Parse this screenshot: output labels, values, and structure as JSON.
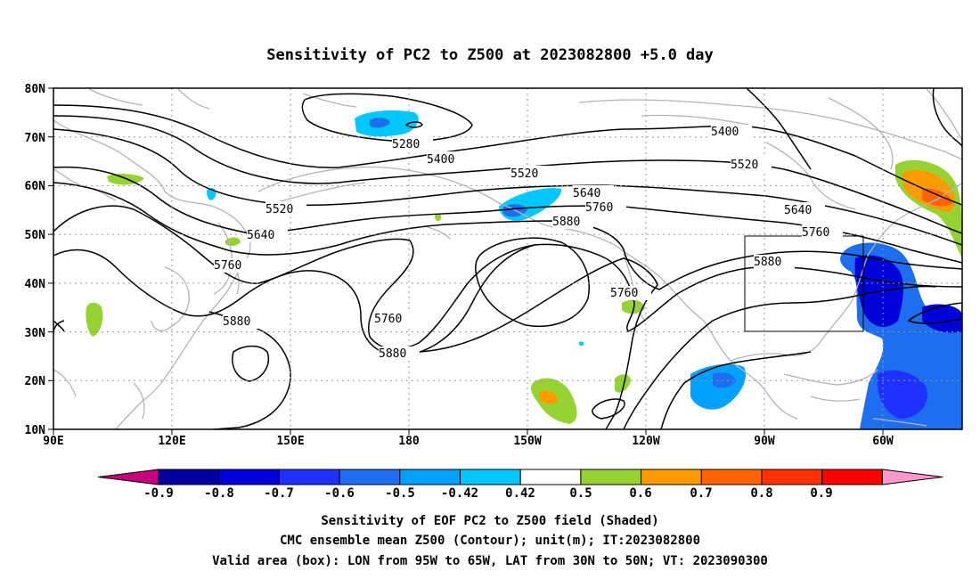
{
  "title": "Sensitivity of PC2 to Z500 at 2023082800 +5.0 day",
  "map": {
    "lon_ticks": [
      "90E",
      "120E",
      "150E",
      "180",
      "150W",
      "120W",
      "90W",
      "60W"
    ],
    "lat_ticks": [
      "80N",
      "70N",
      "60N",
      "50N",
      "40N",
      "30N",
      "20N",
      "10N"
    ],
    "contour_labels": [
      "5280",
      "5400",
      "5400",
      "5520",
      "5520",
      "5520",
      "5640",
      "5640",
      "5640",
      "5760",
      "5760",
      "5760",
      "5760",
      "5760",
      "5880",
      "5880",
      "5880",
      "5880"
    ],
    "valid_box": {
      "lon": "95W to 65W",
      "lat": "30N to 50N"
    },
    "coast_color": "#b4b4b4",
    "contour_color": "#000000"
  },
  "colorbar": {
    "labels": [
      "-0.9",
      "-0.8",
      "-0.7",
      "-0.6",
      "-0.5",
      "-0.42",
      "0.42",
      "0.5",
      "0.6",
      "0.7",
      "0.8",
      "0.9"
    ],
    "colors": [
      "#c7007f",
      "#0000a0",
      "#0000d8",
      "#1e32ff",
      "#1e6ef0",
      "#00a0ff",
      "#00c8ff",
      "#ffffff",
      "#96d232",
      "#ff9b00",
      "#ff6400",
      "#ff3200",
      "#ff0000",
      "#ff99cc"
    ]
  },
  "captions": {
    "line1": "Sensitivity of EOF PC2 to Z500 field (Shaded)",
    "line2": "CMC ensemble mean Z500 (Contour); unit(m); IT:2023082800",
    "line3": "Valid area (box): LON from 95W to 65W, LAT from 30N to 50N; VT: 2023090300"
  }
}
